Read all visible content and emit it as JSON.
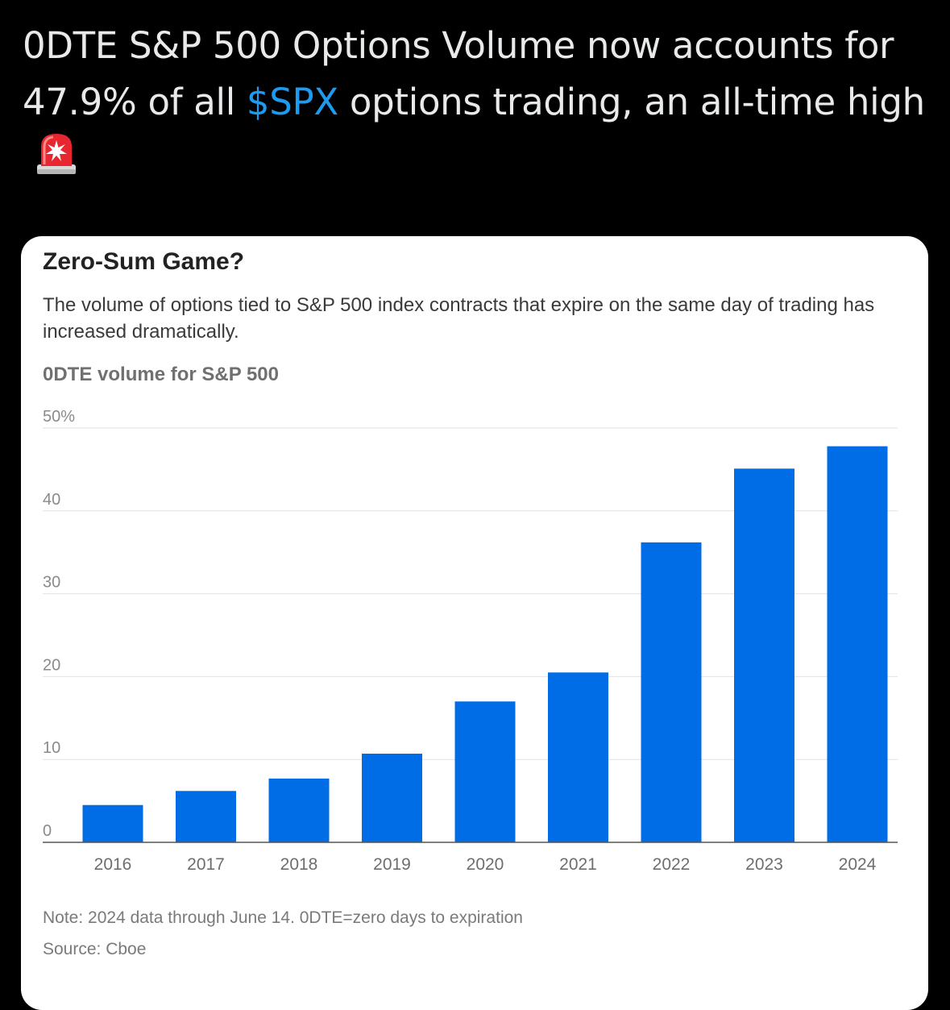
{
  "tweet": {
    "text_before": "0DTE S&P 500 Options Volume now accounts for 47.9% of all ",
    "cashtag": "$SPX",
    "text_after": " options trading, an all-time high",
    "emoji_icon": "rotating-light-siren-icon"
  },
  "colors": {
    "background": "#000000",
    "tweet_text": "#e7e9ea",
    "cashtag": "#1d9bf0",
    "bar": "#006ce5"
  },
  "chart_data": {
    "type": "bar",
    "title": "Zero-Sum Game?",
    "subtitle": "The volume of options tied to S&P 500 index contracts that expire on the same day of trading has increased dramatically.",
    "ylabel": "0DTE volume for S&P 500",
    "categories": [
      "2016",
      "2017",
      "2018",
      "2019",
      "2020",
      "2021",
      "2022",
      "2023",
      "2024"
    ],
    "values": [
      4.5,
      6.2,
      7.7,
      10.7,
      17.0,
      20.5,
      36.2,
      45.1,
      47.8
    ],
    "ylim": [
      0,
      50
    ],
    "yticks": [
      0,
      10,
      20,
      30,
      40,
      50
    ],
    "ytick_labels": [
      "0",
      "10",
      "20",
      "30",
      "40",
      "50%"
    ],
    "grid": true,
    "note": "Note: 2024 data through June 14. 0DTE=zero days to expiration",
    "source": "Source: Cboe"
  }
}
